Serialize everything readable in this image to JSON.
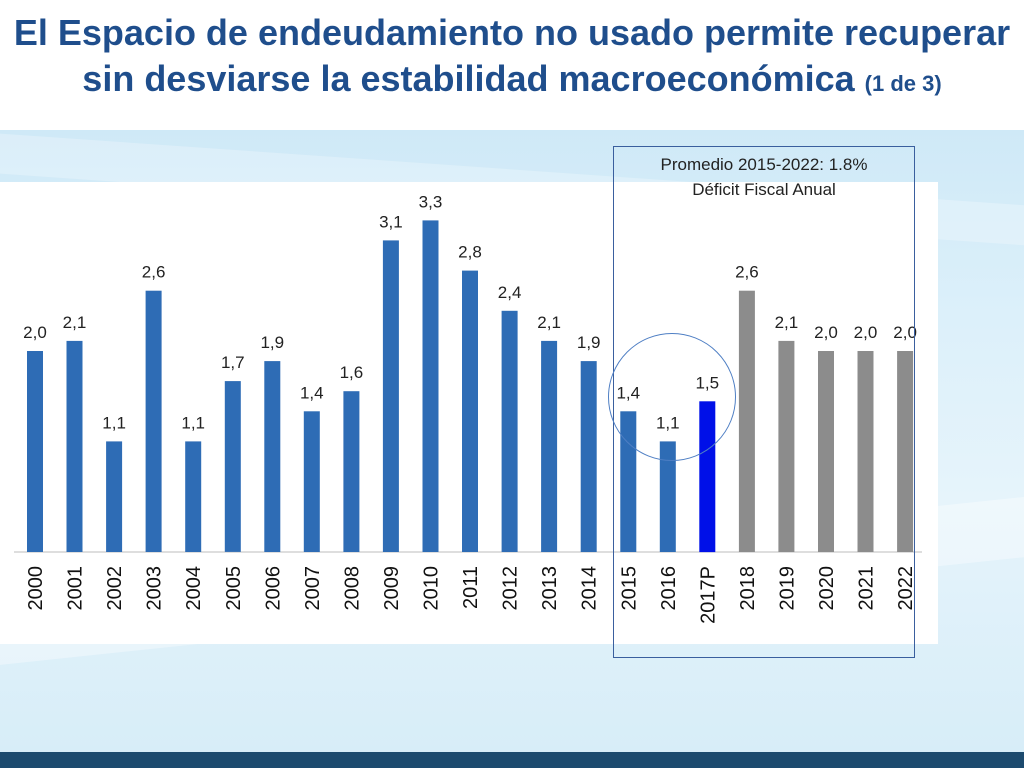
{
  "slide": {
    "title_main": "El Espacio de endeudamiento no usado permite recuperar sin desviarse la estabilidad macroeconómica",
    "title_suffix": "(1 de 3)"
  },
  "annotation": {
    "line1": "Promedio 2015-2022: 1.8%",
    "line2": "Déficit Fiscal Anual"
  },
  "colors": {
    "historical_bar": "#2e6cb5",
    "highlight_bar": "#0010e8",
    "projection_bar": "#8c8c8c",
    "title": "#1f4e8c"
  },
  "chart_data": {
    "type": "bar",
    "title": "",
    "xlabel": "",
    "ylabel": "",
    "ylim": [
      0,
      3.6
    ],
    "grid": false,
    "legend": "none",
    "categories": [
      "2000",
      "2001",
      "2002",
      "2003",
      "2004",
      "2005",
      "2006",
      "2007",
      "2008",
      "2009",
      "2010",
      "2011",
      "2012",
      "2013",
      "2014",
      "2015",
      "2016",
      "2017P",
      "2018",
      "2019",
      "2020",
      "2021",
      "2022"
    ],
    "values": [
      2.0,
      2.1,
      1.1,
      2.6,
      1.1,
      1.7,
      1.9,
      1.4,
      1.6,
      3.1,
      3.3,
      2.8,
      2.4,
      2.1,
      1.9,
      1.4,
      1.1,
      1.5,
      2.6,
      2.1,
      2.0,
      2.0,
      2.0
    ],
    "value_labels": [
      "2,0",
      "2,1",
      "1,1",
      "2,6",
      "1,1",
      "1,7",
      "1,9",
      "1,4",
      "1,6",
      "3,1",
      "3,3",
      "2,8",
      "2,4",
      "2,1",
      "1,9",
      "1,4",
      "1,1",
      "1,5",
      "2,6",
      "2,1",
      "2,0",
      "2,0",
      "2,0"
    ],
    "bar_kinds": [
      "historical",
      "historical",
      "historical",
      "historical",
      "historical",
      "historical",
      "historical",
      "historical",
      "historical",
      "historical",
      "historical",
      "historical",
      "historical",
      "historical",
      "historical",
      "historical",
      "historical",
      "highlight",
      "projection",
      "projection",
      "projection",
      "projection",
      "projection"
    ]
  }
}
